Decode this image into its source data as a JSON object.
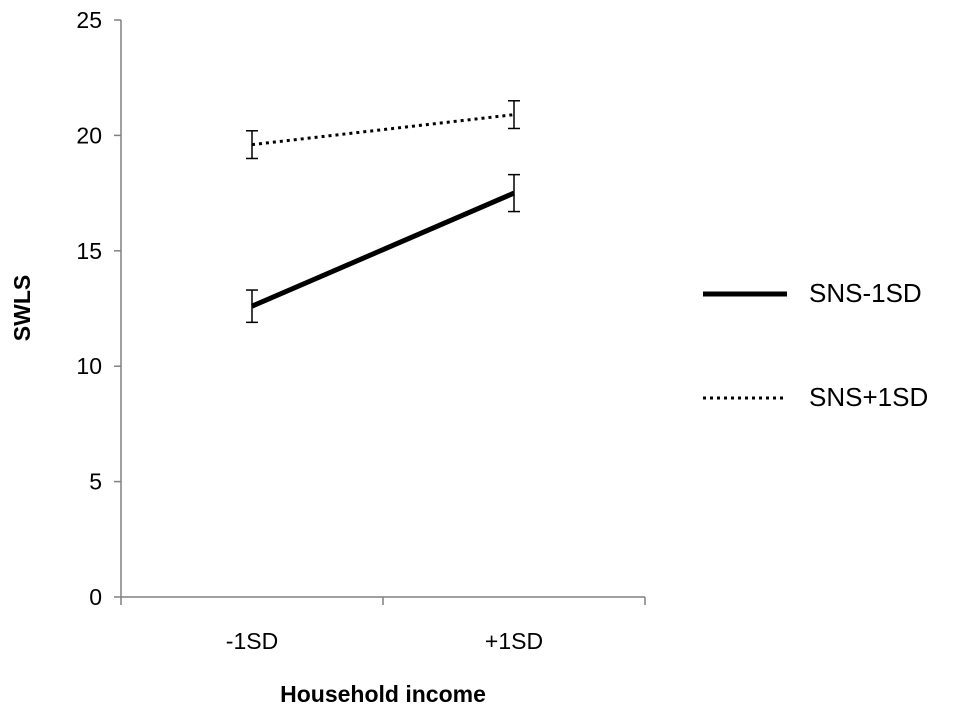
{
  "chart_data": {
    "type": "line",
    "title": "",
    "xlabel": "Household income",
    "ylabel": "SWLS",
    "categories": [
      "-1SD",
      "+1SD"
    ],
    "ylim": [
      0,
      25
    ],
    "yticks": [
      0,
      5,
      10,
      15,
      20,
      25
    ],
    "grid": false,
    "legend_position": "right",
    "series": [
      {
        "name": "SNS-1SD",
        "values": [
          12.6,
          17.5
        ],
        "error": [
          0.7,
          0.8
        ],
        "style": "solid",
        "color": "#000000"
      },
      {
        "name": "SNS+1SD",
        "values": [
          19.6,
          20.9
        ],
        "error": [
          0.6,
          0.6
        ],
        "style": "dotted",
        "color": "#000000"
      }
    ]
  }
}
